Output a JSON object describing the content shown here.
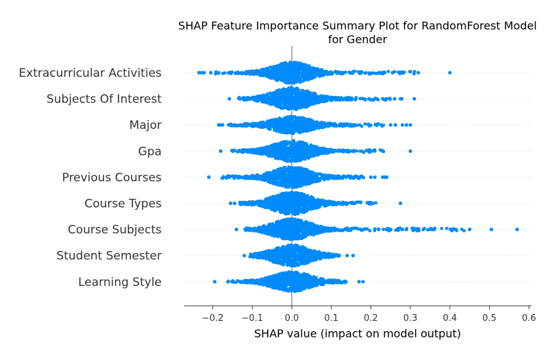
{
  "chart_data": {
    "type": "scatter",
    "subtype": "shap-beeswarm",
    "title_lines": [
      "SHAP Feature Importance Summary Plot for RandomForest Model",
      "for Gender"
    ],
    "xlabel": "SHAP value (impact on model output)",
    "ylabel": "",
    "xlim": [
      -0.27,
      0.61
    ],
    "xticks": [
      -0.2,
      -0.1,
      0.0,
      0.1,
      0.2,
      0.3,
      0.4,
      0.5,
      0.6
    ],
    "xtick_labels": [
      "−0.2",
      "−0.1",
      "0.0",
      "0.1",
      "0.2",
      "0.3",
      "0.4",
      "0.5",
      "0.6"
    ],
    "zero_line": 0.0,
    "grid": false,
    "dot_color": "#008bfb",
    "features": [
      {
        "name": "Extracurricular Activities",
        "min": -0.23,
        "max": 0.4,
        "density_width": 0.0042,
        "peak_halfwidth_px": 14,
        "outliers": [
          -0.235,
          -0.228,
          -0.222,
          -0.205,
          0.22,
          0.225,
          0.23,
          0.235,
          0.255,
          0.28,
          0.32,
          0.4
        ]
      },
      {
        "name": "Subjects Of Interest",
        "min": -0.16,
        "max": 0.32,
        "density_width": 0.1,
        "peak_halfwidth_px": 15,
        "outliers": [
          -0.158,
          0.195,
          0.215,
          0.23,
          0.24,
          0.26,
          0.275,
          0.278,
          0.31
        ]
      },
      {
        "name": "Major",
        "min": -0.185,
        "max": 0.3,
        "density_width": 0.1,
        "peak_halfwidth_px": 11,
        "outliers": [
          -0.185,
          -0.18,
          -0.175,
          -0.16,
          0.25,
          0.262,
          0.28,
          0.29,
          0.3
        ]
      },
      {
        "name": "Gpa",
        "min": -0.18,
        "max": 0.3,
        "density_width": 0.07,
        "peak_halfwidth_px": 14,
        "outliers": [
          -0.18,
          -0.135,
          0.2,
          0.21,
          0.3
        ]
      },
      {
        "name": "Previous Courses",
        "min": -0.21,
        "max": 0.24,
        "density_width": 0.07,
        "peak_halfwidth_px": 14,
        "outliers": [
          -0.21,
          -0.165,
          -0.158,
          -0.13,
          0.2,
          0.21,
          0.23,
          0.235,
          0.24
        ]
      },
      {
        "name": "Course Types",
        "min": -0.155,
        "max": 0.275,
        "density_width": 0.065,
        "peak_halfwidth_px": 15,
        "outliers": [
          -0.155,
          -0.145,
          0.205,
          0.275
        ]
      },
      {
        "name": "Course Subjects",
        "min": -0.14,
        "max": 0.57,
        "density_width": 0.07,
        "peak_halfwidth_px": 14,
        "outliers": [
          -0.14,
          0.22,
          0.24,
          0.25,
          0.28,
          0.29,
          0.31,
          0.355,
          0.36,
          0.415,
          0.45,
          0.505,
          0.57
        ]
      },
      {
        "name": "Student Semester",
        "min": -0.125,
        "max": 0.155,
        "density_width": 0.05,
        "peak_halfwidth_px": 14,
        "outliers": [
          -0.12,
          0.14,
          0.155
        ]
      },
      {
        "name": "Learning Style",
        "min": -0.195,
        "max": 0.18,
        "density_width": 0.05,
        "peak_halfwidth_px": 13,
        "outliers": [
          -0.195,
          -0.13,
          0.17,
          0.18
        ]
      }
    ]
  }
}
